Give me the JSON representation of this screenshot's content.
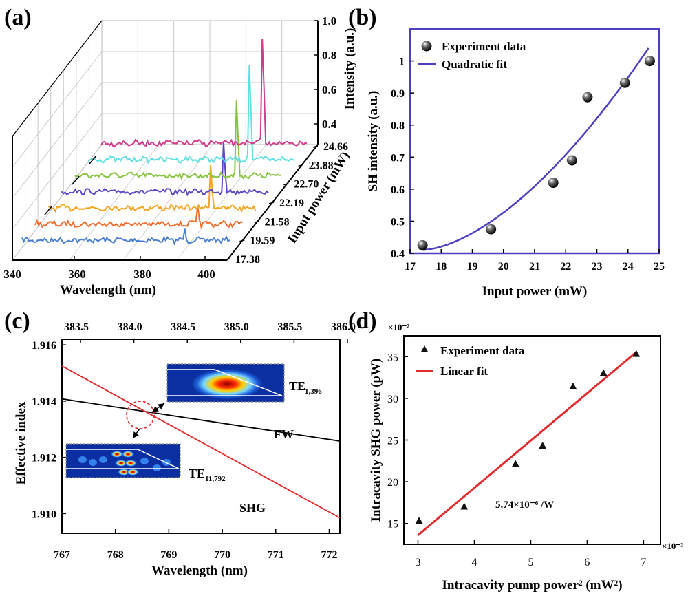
{
  "panels": {
    "a": {
      "label": "(a)"
    },
    "b": {
      "label": "(b)"
    },
    "c": {
      "label": "(c)"
    },
    "d": {
      "label": "(d)"
    }
  },
  "chart_data": [
    {
      "id": "a",
      "type": "line",
      "subtype": "3d-waterfall",
      "xlabel": "Wavelength (nm)",
      "ylabel": "Input power (mW)",
      "zlabel": "Intensity (a.u.)",
      "x_ticks": [
        "340",
        "360",
        "380",
        "400"
      ],
      "z_ticks": [
        "0.4",
        "0.6",
        "0.8",
        "1.0"
      ],
      "series": [
        {
          "name": "17.38",
          "color": "#4a7fd6",
          "peak_x": 388,
          "peak_height": 0.05
        },
        {
          "name": "19.59",
          "color": "#f26c2a",
          "peak_x": 388,
          "peak_height": 0.09
        },
        {
          "name": "21.58",
          "color": "#f5a623",
          "peak_x": 388,
          "peak_height": 0.25
        },
        {
          "name": "22.19",
          "color": "#5a47c8",
          "peak_x": 388,
          "peak_height": 0.29
        },
        {
          "name": "22.70",
          "color": "#86c440",
          "peak_x": 388,
          "peak_height": 0.42
        },
        {
          "name": "23.88",
          "color": "#5ee0e0",
          "peak_x": 388,
          "peak_height": 0.55
        },
        {
          "name": "24.66",
          "color": "#d43a8c",
          "peak_x": 388,
          "peak_height": 0.63
        }
      ]
    },
    {
      "id": "b",
      "type": "scatter",
      "xlabel": "Input power (mW)",
      "ylabel": "SH intensity (a.u.)",
      "xlim": [
        17,
        25
      ],
      "ylim": [
        0.4,
        1.1
      ],
      "x_ticks": [
        "17",
        "18",
        "19",
        "20",
        "21",
        "22",
        "23",
        "24",
        "25"
      ],
      "y_ticks": [
        "0.4",
        "0.5",
        "0.6",
        "0.7",
        "0.8",
        "0.9",
        "1"
      ],
      "series": [
        {
          "name": "Experiment data",
          "points": [
            [
              17.4,
              0.425
            ],
            [
              19.6,
              0.475
            ],
            [
              21.6,
              0.62
            ],
            [
              22.2,
              0.69
            ],
            [
              22.7,
              0.887
            ],
            [
              23.9,
              0.932
            ],
            [
              24.7,
              1.0
            ]
          ]
        },
        {
          "name": "Quadratic fit",
          "color": "#4b3fc4",
          "x_range": [
            17.38,
            24.66
          ],
          "y_range": [
            0.41,
            1.04
          ]
        }
      ]
    },
    {
      "id": "c",
      "type": "line",
      "xlabel": "Wavelength (nm)",
      "ylabel": "Effective index",
      "xlim": [
        767,
        772.2
      ],
      "ylim": [
        1.9093,
        1.9162
      ],
      "x_ticks": [
        "767",
        "768",
        "769",
        "770",
        "771",
        "772"
      ],
      "y_ticks": [
        "1.910",
        "1.912",
        "1.914",
        "1.916"
      ],
      "top_ticks": [
        "383.5",
        "384.0",
        "384.5",
        "385.0",
        "385.5",
        "386.0"
      ],
      "series": [
        {
          "name": "FW",
          "color": "#000000",
          "x": [
            767,
            772.2
          ],
          "y": [
            1.91408,
            1.91258
          ]
        },
        {
          "name": "SHG",
          "color": "#e32b2b",
          "x": [
            767,
            772.2
          ],
          "y": [
            1.91525,
            1.90985
          ]
        }
      ],
      "annotations": {
        "fw": "FW",
        "shg": "SHG",
        "mode1_base": "TE",
        "mode1_sub": "1,396",
        "mode2_base": "TE",
        "mode2_sub": "11,792"
      }
    },
    {
      "id": "d",
      "type": "scatter",
      "xlabel": "Intracavity pump power² (mW²)",
      "ylabel": "Intracavity SHG power (pW)",
      "xlim": [
        2.75,
        7.3
      ],
      "ylim": [
        12.5,
        37.5
      ],
      "x_ticks": [
        "3",
        "4",
        "5",
        "6",
        "7"
      ],
      "y_ticks": [
        "15",
        "20",
        "25",
        "30",
        "35"
      ],
      "x_scale_note": "×10⁻²",
      "y_scale_note": "×10⁻²",
      "annotation": "5.74×10⁻⁶ /W",
      "series": [
        {
          "name": "Experiment data",
          "points": [
            [
              3.02,
              15.3
            ],
            [
              3.82,
              17.0
            ],
            [
              4.73,
              22.1
            ],
            [
              5.21,
              24.3
            ],
            [
              5.75,
              31.4
            ],
            [
              6.29,
              33.0
            ],
            [
              6.87,
              35.3
            ]
          ]
        },
        {
          "name": "Linear fit",
          "color": "#e32b2b",
          "x": [
            3.0,
            6.88
          ],
          "y": [
            13.6,
            35.6
          ]
        }
      ]
    }
  ]
}
